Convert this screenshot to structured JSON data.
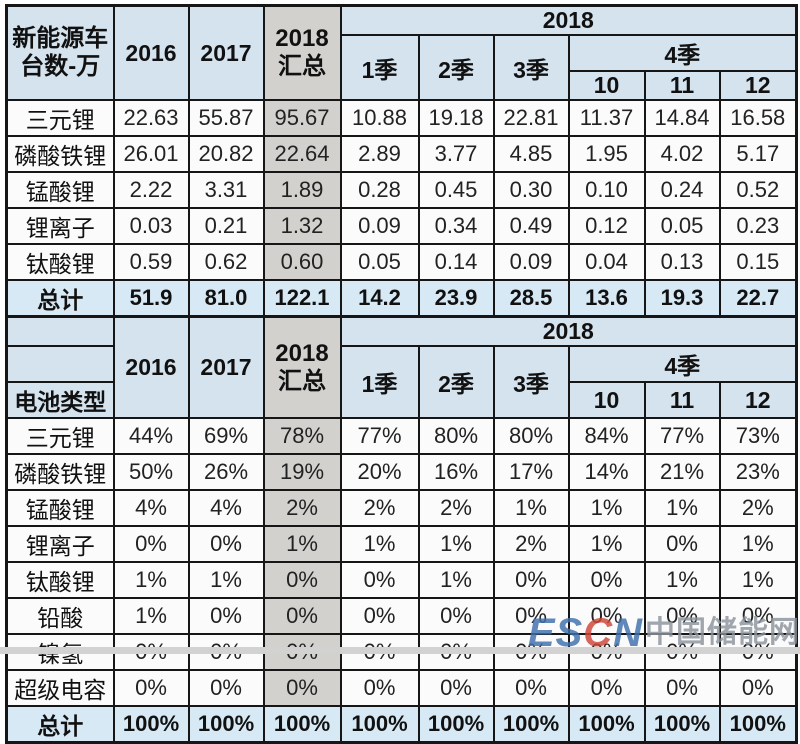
{
  "colors": {
    "header_blue": "#d5e3ef",
    "totals_blue": "#d7e9f5",
    "summary_gray": "#d2d1ce",
    "cell_white": "#fbfbfb",
    "border": "#161616",
    "watermark_blue": "#3f6fae",
    "watermark_red": "#cf4638",
    "watermark_gray": "#8d949c"
  },
  "watermark": {
    "part1": "ES",
    "part2": "C",
    "part3": "N",
    "cn": "中国储能网"
  },
  "chart_data": [
    {
      "type": "table",
      "title": "新能源车台数-万",
      "header": {
        "corner": "新能源车\n台数-万",
        "y2016": "2016",
        "y2017": "2017",
        "y2018sum": "2018\n汇总",
        "y2018": "2018",
        "q1": "1季",
        "q2": "2季",
        "q3": "3季",
        "q4": "4季",
        "m10": "10",
        "m11": "11",
        "m12": "12"
      },
      "columns": [
        "2016",
        "2017",
        "2018汇总",
        "1季",
        "2季",
        "3季",
        "10",
        "11",
        "12"
      ],
      "rows": [
        {
          "label": "三元锂",
          "values": [
            "22.63",
            "55.87",
            "95.67",
            "10.88",
            "19.18",
            "22.81",
            "11.37",
            "14.84",
            "16.58"
          ],
          "is_total": false
        },
        {
          "label": "磷酸铁锂",
          "values": [
            "26.01",
            "20.82",
            "22.64",
            "2.89",
            "3.77",
            "4.85",
            "1.95",
            "4.02",
            "5.17"
          ],
          "is_total": false
        },
        {
          "label": "锰酸锂",
          "values": [
            "2.22",
            "3.31",
            "1.89",
            "0.28",
            "0.45",
            "0.30",
            "0.10",
            "0.24",
            "0.52"
          ],
          "is_total": false
        },
        {
          "label": "锂离子",
          "values": [
            "0.03",
            "0.21",
            "1.32",
            "0.09",
            "0.34",
            "0.49",
            "0.12",
            "0.05",
            "0.23"
          ],
          "is_total": false
        },
        {
          "label": "钛酸锂",
          "values": [
            "0.59",
            "0.62",
            "0.60",
            "0.05",
            "0.14",
            "0.09",
            "0.04",
            "0.13",
            "0.15"
          ],
          "is_total": false
        },
        {
          "label": "总计",
          "values": [
            "51.9",
            "81.0",
            "122.1",
            "14.2",
            "23.9",
            "28.5",
            "13.6",
            "19.3",
            "22.7"
          ],
          "is_total": true
        }
      ]
    },
    {
      "type": "table",
      "title": "电池类型",
      "header": {
        "corner": "电池类型",
        "y2016": "2016",
        "y2017": "2017",
        "y2018sum": "2018\n汇总",
        "y2018": "2018",
        "q1": "1季",
        "q2": "2季",
        "q3": "3季",
        "q4": "4季",
        "m10": "10",
        "m11": "11",
        "m12": "12"
      },
      "columns": [
        "2016",
        "2017",
        "2018汇总",
        "1季",
        "2季",
        "3季",
        "10",
        "11",
        "12"
      ],
      "rows": [
        {
          "label": "三元锂",
          "values": [
            "44%",
            "69%",
            "78%",
            "77%",
            "80%",
            "80%",
            "84%",
            "77%",
            "73%"
          ],
          "is_total": false
        },
        {
          "label": "磷酸铁锂",
          "values": [
            "50%",
            "26%",
            "19%",
            "20%",
            "16%",
            "17%",
            "14%",
            "21%",
            "23%"
          ],
          "is_total": false
        },
        {
          "label": "锰酸锂",
          "values": [
            "4%",
            "4%",
            "2%",
            "2%",
            "2%",
            "1%",
            "1%",
            "1%",
            "2%"
          ],
          "is_total": false
        },
        {
          "label": "锂离子",
          "values": [
            "0%",
            "0%",
            "1%",
            "1%",
            "1%",
            "2%",
            "1%",
            "0%",
            "1%"
          ],
          "is_total": false
        },
        {
          "label": "钛酸锂",
          "values": [
            "1%",
            "1%",
            "0%",
            "0%",
            "1%",
            "0%",
            "0%",
            "1%",
            "1%"
          ],
          "is_total": false
        },
        {
          "label": "铅酸",
          "values": [
            "1%",
            "0%",
            "0%",
            "0%",
            "0%",
            "0%",
            "0%",
            "0%",
            "0%"
          ],
          "is_total": false
        },
        {
          "label": "镍氢",
          "values": [
            "0%",
            "0%",
            "0%",
            "0%",
            "0%",
            "0%",
            "0%",
            "0%",
            "0%"
          ],
          "is_total": false
        },
        {
          "label": "超级电容",
          "values": [
            "0%",
            "0%",
            "0%",
            "0%",
            "0%",
            "0%",
            "0%",
            "0%",
            "0%"
          ],
          "is_total": false
        },
        {
          "label": "总计",
          "values": [
            "100%",
            "100%",
            "100%",
            "100%",
            "100%",
            "100%",
            "100%",
            "100%",
            "100%"
          ],
          "is_total": true
        }
      ]
    }
  ]
}
